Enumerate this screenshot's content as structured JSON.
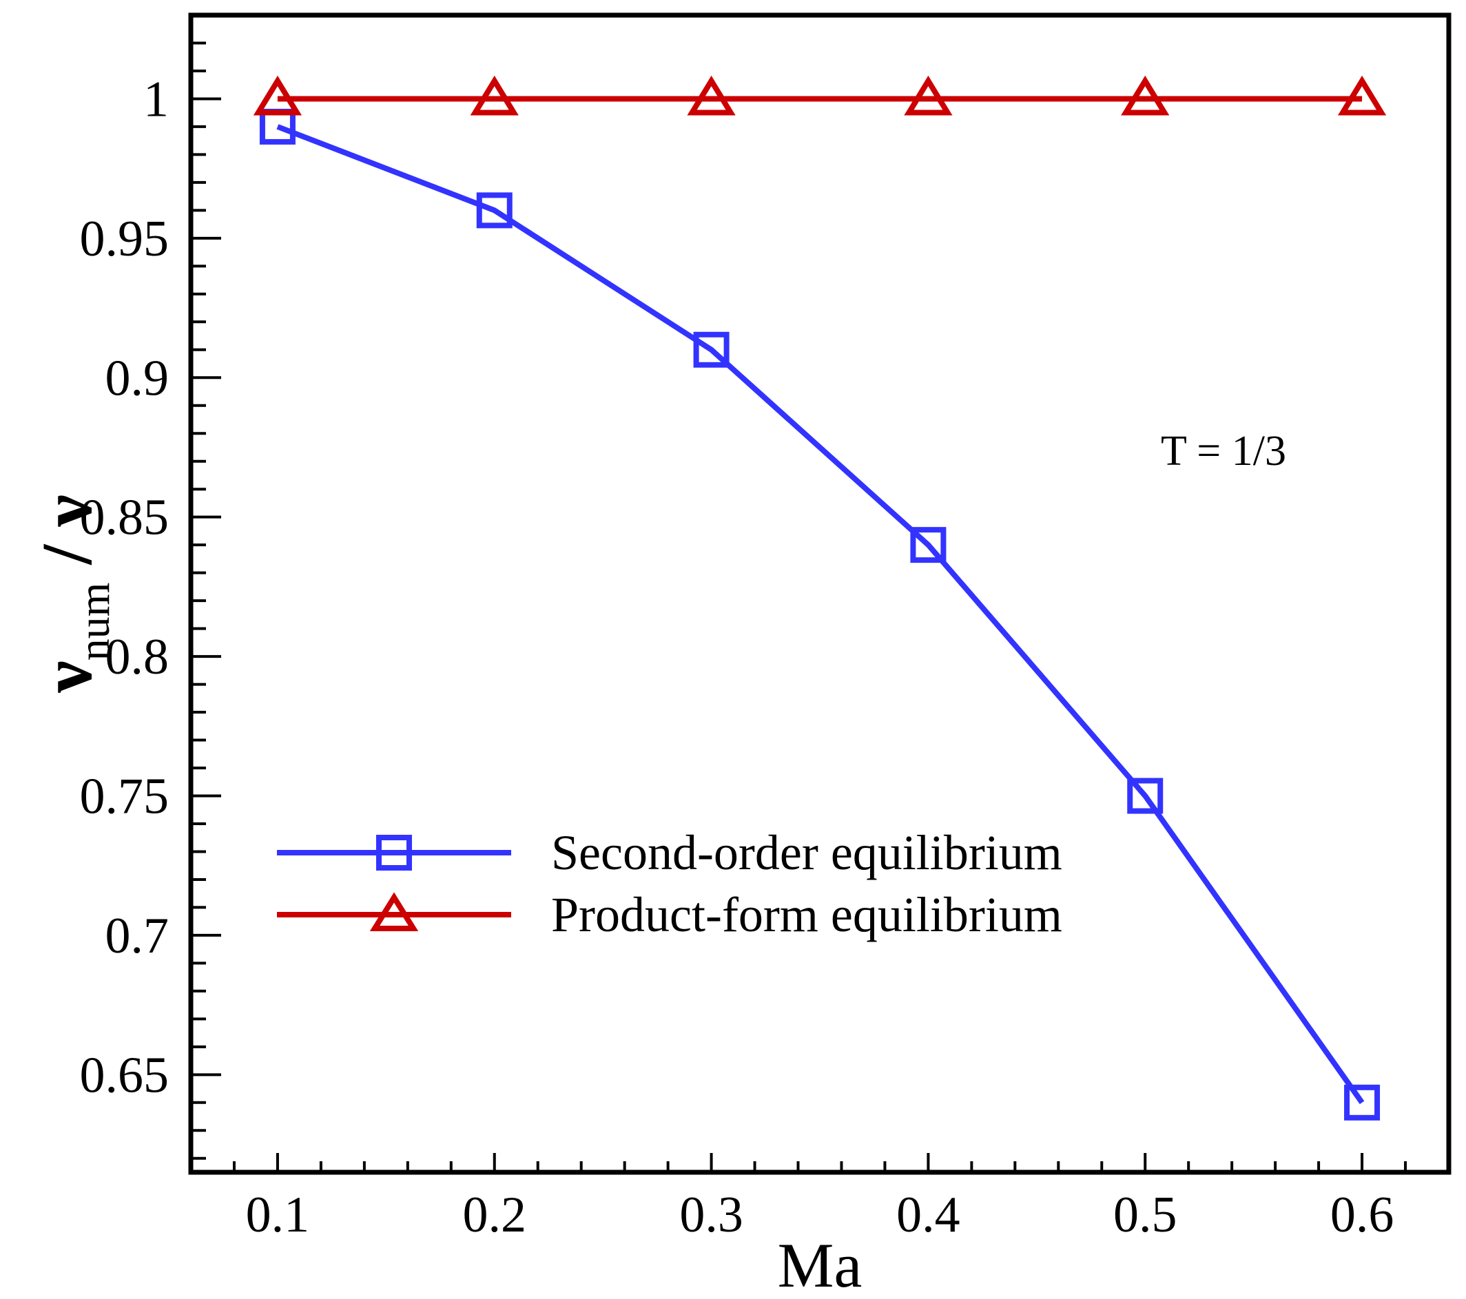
{
  "chart_data": {
    "type": "line",
    "x": [
      0.1,
      0.2,
      0.3,
      0.4,
      0.5,
      0.6
    ],
    "series": [
      {
        "name": "Second-order equilibrium",
        "values": [
          0.99,
          0.96,
          0.91,
          0.84,
          0.75,
          0.64
        ],
        "color": "#3333ff",
        "marker": "square"
      },
      {
        "name": "Product-form equilibrium",
        "values": [
          1.0,
          1.0,
          1.0,
          1.0,
          1.0,
          1.0
        ],
        "color": "#cc0000",
        "marker": "triangle"
      }
    ],
    "xlabel": "Ma",
    "ylabel": {
      "main": "ν",
      "sub": "num",
      "rest": " / ν"
    },
    "xlim": [
      0.06,
      0.64
    ],
    "ylim": [
      0.615,
      1.03
    ],
    "xticks": [
      0.1,
      0.2,
      0.3,
      0.4,
      0.5,
      0.6
    ],
    "xtick_labels": [
      "0.1",
      "0.2",
      "0.3",
      "0.4",
      "0.5",
      "0.6"
    ],
    "yticks": [
      0.65,
      0.7,
      0.75,
      0.8,
      0.85,
      0.9,
      0.95,
      1.0
    ],
    "ytick_labels": [
      "0.65",
      "0.7",
      "0.75",
      "0.8",
      "0.85",
      "0.9",
      "0.95",
      "1"
    ],
    "annotation": "T = 1/3",
    "legend_position": "lower-left",
    "grid": false
  }
}
